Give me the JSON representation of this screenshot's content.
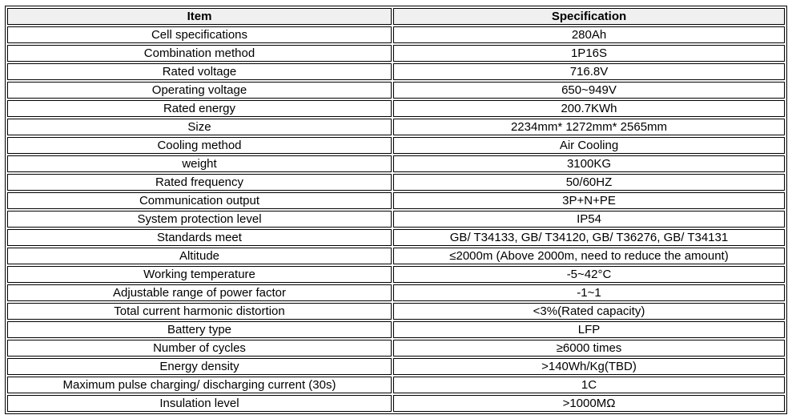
{
  "table": {
    "headers": [
      "Item",
      "Specification"
    ],
    "rows": [
      [
        "Cell specifications",
        "280Ah"
      ],
      [
        "Combination method",
        "1P16S"
      ],
      [
        "Rated voltage",
        "716.8V"
      ],
      [
        "Operating voltage",
        "650~949V"
      ],
      [
        "Rated energy",
        "200.7KWh"
      ],
      [
        "Size",
        "2234mm* 1272mm* 2565mm"
      ],
      [
        "Cooling method",
        "Air Cooling"
      ],
      [
        "weight",
        "3100KG"
      ],
      [
        "Rated frequency",
        "50/60HZ"
      ],
      [
        "Communication output",
        "3P+N+PE"
      ],
      [
        "System protection level",
        "IP54"
      ],
      [
        "Standards meet",
        "GB/ T34133, GB/ T34120, GB/ T36276, GB/ T34131"
      ],
      [
        "Altitude",
        "≤2000m (Above 2000m, need to reduce the amount)"
      ],
      [
        "Working temperature",
        "-5~42°C"
      ],
      [
        "Adjustable range of power factor",
        "-1~1"
      ],
      [
        "Total current harmonic distortion",
        "<3%(Rated capacity)"
      ],
      [
        "Battery type",
        "LFP"
      ],
      [
        "Number of cycles",
        "≥6000 times"
      ],
      [
        "Energy density",
        ">140Wh/Kg(TBD)"
      ],
      [
        "Maximum pulse charging/ discharging current (30s)",
        "1C"
      ],
      [
        "Insulation level",
        ">1000MΩ"
      ]
    ]
  }
}
